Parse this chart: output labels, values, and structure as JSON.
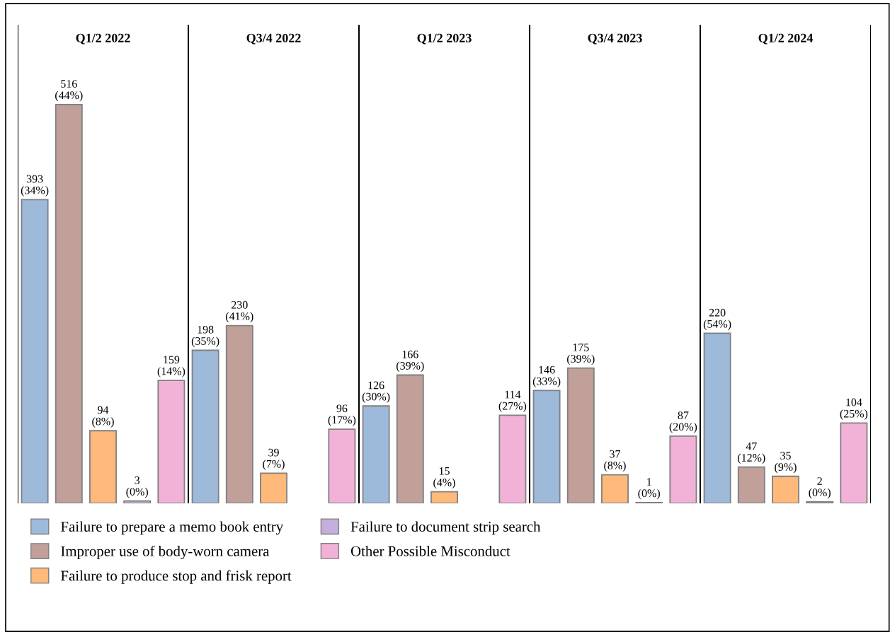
{
  "chart_data": {
    "type": "bar",
    "categories": [
      "Q1/2 2022",
      "Q3/4 2022",
      "Q1/2 2023",
      "Q3/4 2023",
      "Q1/2 2024"
    ],
    "series": [
      {
        "name": "Failure to prepare a memo book entry",
        "color": "#9dbadb",
        "values": [
          393,
          198,
          126,
          146,
          220
        ],
        "value_labels": [
          "393\n(34%)",
          "198\n(35%)",
          "126\n(30%)",
          "146\n(33%)",
          "220\n(54%)"
        ]
      },
      {
        "name": "Improper use of body-worn camera",
        "color": "#c0a099",
        "values": [
          516,
          230,
          166,
          175,
          47
        ],
        "value_labels": [
          "516\n(44%)",
          "230\n(41%)",
          "166\n(39%)",
          "175\n(39%)",
          "47\n(12%)"
        ]
      },
      {
        "name": "Failure to produce stop and frisk report",
        "color": "#ffb97a",
        "values": [
          94,
          39,
          15,
          37,
          35
        ],
        "value_labels": [
          "94\n(8%)",
          "39\n(7%)",
          "15\n(4%)",
          "37\n(8%)",
          "35\n(9%)"
        ]
      },
      {
        "name": "Failure to document strip search",
        "color": "#c5aedb",
        "values": [
          3,
          null,
          null,
          1,
          2
        ],
        "value_labels": [
          "3\n(0%)",
          null,
          null,
          "1\n(0%)",
          "2\n(0%)"
        ]
      },
      {
        "name": "Other Possible Misconduct",
        "color": "#f2b2d8",
        "values": [
          159,
          96,
          114,
          87,
          104
        ],
        "value_labels": [
          "159\n(14%)",
          "96\n(17%)",
          "114\n(27%)",
          "87\n(20%)",
          "104\n(25%)"
        ]
      }
    ],
    "legend": "bottom"
  }
}
